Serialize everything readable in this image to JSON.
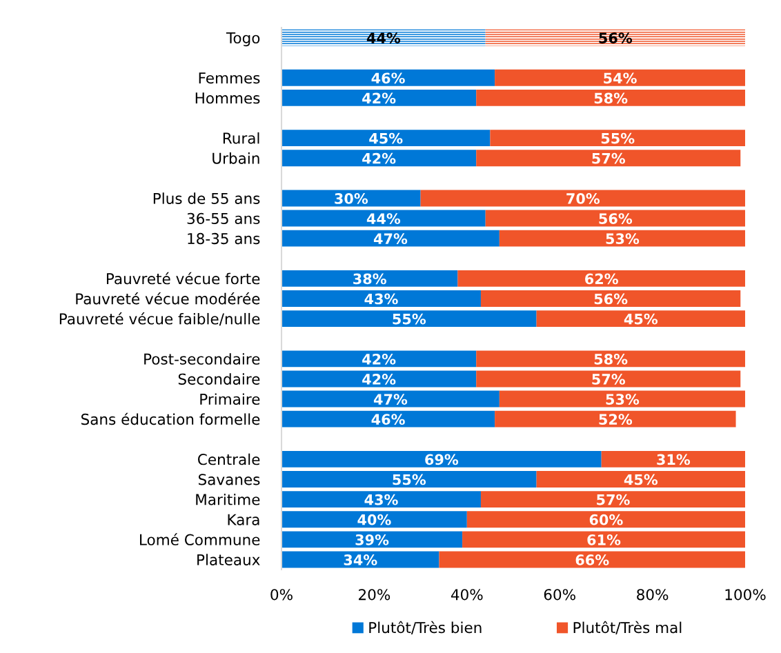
{
  "chart_data": {
    "type": "bar",
    "orientation": "horizontal",
    "stacked": true,
    "categories": [
      "Togo",
      null,
      "Femmes",
      "Hommes",
      null,
      "Rural",
      "Urbain",
      null,
      "Plus de 55 ans",
      "36-55 ans",
      "18-35 ans",
      null,
      "Pauvreté vécue forte",
      "Pauvreté vécue modérée",
      "Pauvreté vécue faible/nulle",
      null,
      "Post-secondaire",
      "Secondaire",
      "Primaire",
      "Sans éducation formelle",
      null,
      "Centrale",
      "Savanes",
      "Maritime",
      "Kara",
      "Lomé Commune",
      "Plateaux"
    ],
    "series": [
      {
        "name": "Plutôt/Très bien",
        "color": "#0078d7",
        "values": [
          44,
          null,
          46,
          42,
          null,
          45,
          42,
          null,
          30,
          44,
          47,
          null,
          38,
          43,
          55,
          null,
          42,
          42,
          47,
          46,
          null,
          69,
          55,
          43,
          40,
          39,
          34
        ],
        "value_labels": [
          "44%",
          null,
          "46%",
          "42%",
          null,
          "45%",
          "42%",
          null,
          "30%",
          "44%",
          "47%",
          null,
          "38%",
          "43%",
          "55%",
          null,
          "42%",
          "42%",
          "47%",
          "46%",
          null,
          "69%",
          "55%",
          "43%",
          "40%",
          "39%",
          "34%"
        ]
      },
      {
        "name": "Plutôt/Très mal",
        "color": "#f0552a",
        "values": [
          56,
          null,
          54,
          58,
          null,
          55,
          57,
          null,
          70,
          56,
          53,
          null,
          62,
          56,
          45,
          null,
          58,
          57,
          53,
          52,
          null,
          31,
          45,
          57,
          60,
          61,
          66
        ],
        "value_labels": [
          "56%",
          null,
          "54%",
          "58%",
          null,
          "55%",
          "57%",
          null,
          "70%",
          "56%",
          "53%",
          null,
          "62%",
          "56%",
          "45%",
          null,
          "58%",
          "57%",
          "53%",
          "52%",
          null,
          "31%",
          "45%",
          "57%",
          "60%",
          "61%",
          "66%"
        ]
      }
    ],
    "xlim": [
      0,
      100
    ],
    "xticks": [
      {
        "value": 0,
        "label": "0%"
      },
      {
        "value": 20,
        "label": "20%"
      },
      {
        "value": 40,
        "label": "40%"
      },
      {
        "value": 60,
        "label": "60%"
      },
      {
        "value": 80,
        "label": "80%"
      },
      {
        "value": 100,
        "label": "100%"
      }
    ],
    "legend": "bottom"
  }
}
